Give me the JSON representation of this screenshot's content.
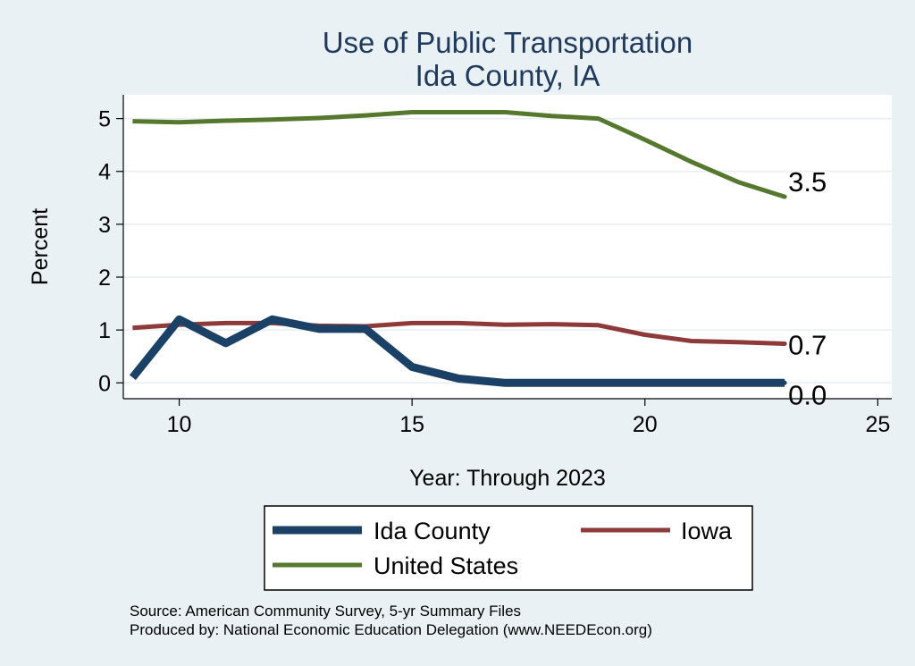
{
  "chart_data": {
    "type": "line",
    "title": "Use of Public Transportation",
    "subtitle": "Ida County, IA",
    "xlabel": "Year: Through 2023",
    "ylabel": "Percent",
    "xlim": [
      8.8,
      25.3
    ],
    "ylim": [
      -0.3,
      5.45
    ],
    "x_ticks": [
      10,
      15,
      20,
      25
    ],
    "y_ticks": [
      0,
      1,
      2,
      3,
      4,
      5
    ],
    "grid": true,
    "legend_position": "bottom",
    "x": [
      9,
      10,
      11,
      12,
      13,
      14,
      15,
      16,
      17,
      18,
      19,
      20,
      21,
      22,
      23
    ],
    "series": [
      {
        "name": "Ida County",
        "color": "#1b4266",
        "width": 9,
        "values": [
          0.1,
          1.2,
          0.75,
          1.2,
          1.02,
          1.02,
          0.3,
          0.08,
          0.0,
          0.0,
          0.0,
          0.0,
          0.0,
          0.0,
          0.0
        ],
        "end_label": "0.0"
      },
      {
        "name": "Iowa",
        "color": "#8e3a3a",
        "width": 5,
        "values": [
          1.04,
          1.1,
          1.13,
          1.13,
          1.08,
          1.07,
          1.13,
          1.13,
          1.1,
          1.11,
          1.09,
          0.91,
          0.79,
          0.77,
          0.74
        ],
        "end_label": "0.7"
      },
      {
        "name": "United States",
        "color": "#55772e",
        "width": 5,
        "values": [
          4.95,
          4.93,
          4.96,
          4.98,
          5.01,
          5.06,
          5.12,
          5.12,
          5.12,
          5.05,
          5.0,
          4.6,
          4.18,
          3.8,
          3.52
        ],
        "end_label": "3.5"
      }
    ],
    "source_lines": [
      "Source: American Community Survey, 5-yr Summary Files",
      "Produced by: National Economic Education Delegation (www.NEEDEcon.org)"
    ]
  }
}
